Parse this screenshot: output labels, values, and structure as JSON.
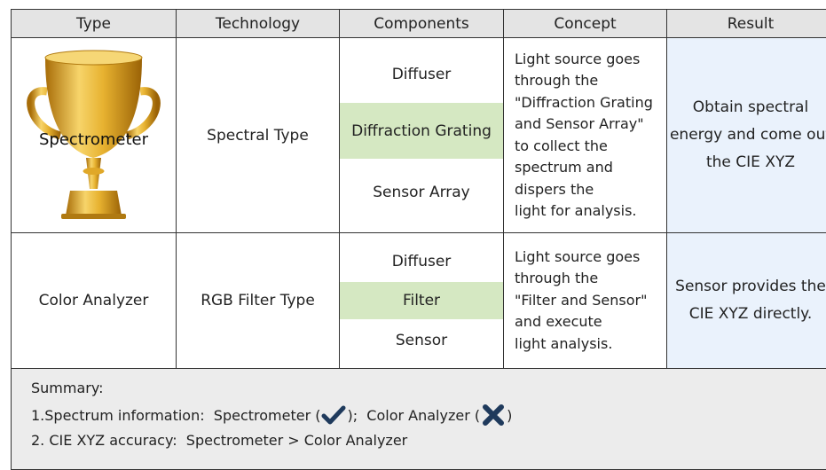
{
  "table": {
    "headers": [
      "Type",
      "Technology",
      "Components",
      "Concept",
      "Result"
    ],
    "rows": [
      {
        "type": "Spectrometer",
        "technology": "Spectral Type",
        "components": [
          "Diffuser",
          "Diffraction Grating",
          "Sensor Array"
        ],
        "concept": [
          "Light source goes",
          "through the",
          "\"Diffraction Grating",
          "and Sensor Array\"",
          "to collect the",
          "spectrum and",
          "dispers the",
          "light for analysis."
        ],
        "result": [
          "Obtain spectral",
          "energy and come out",
          "the CIE XYZ"
        ]
      },
      {
        "type": "Color Analyzer",
        "technology": "RGB Filter Type",
        "components": [
          "Diffuser",
          "Filter",
          "Sensor"
        ],
        "concept": [
          "Light source goes",
          "through the",
          "\"Filter and Sensor\"",
          "and execute",
          "light analysis."
        ],
        "result": [
          "Sensor provides the",
          "CIE XYZ directly."
        ]
      }
    ]
  },
  "summary": {
    "title": "Summary:",
    "line1": [
      "1.Spectrum information:  Spectrometer (",
      ");  Color Analyzer (",
      ")"
    ],
    "line2": "2. CIE XYZ accuracy:  Spectrometer > Color Analyzer"
  }
}
